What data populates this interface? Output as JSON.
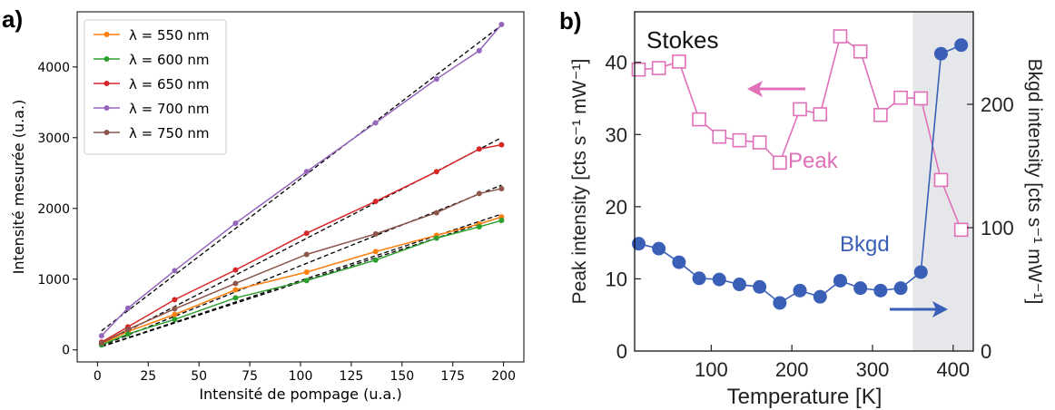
{
  "panels": {
    "a": {
      "label": "a)"
    },
    "b": {
      "label": "b)"
    }
  },
  "chart_data": [
    {
      "type": "line",
      "panel": "a)",
      "xlabel": "Intensité de pompage (u.a.)",
      "ylabel": "Intensité mesurée (u.a.)",
      "xlim": [
        -10,
        210
      ],
      "ylim": [
        -170,
        4780
      ],
      "x_ticks": [
        0,
        25,
        50,
        75,
        100,
        125,
        150,
        175,
        200
      ],
      "y_ticks": [
        0,
        1000,
        2000,
        3000,
        4000
      ],
      "legend_position": "top-left",
      "grid": false,
      "x": [
        2,
        15,
        38,
        68,
        103,
        137,
        167,
        188,
        199
      ],
      "series": [
        {
          "name": "λ = 550 nm",
          "color": "#ff7f0e",
          "values": [
            85,
            260,
            500,
            850,
            1100,
            1390,
            1620,
            1780,
            1880
          ]
        },
        {
          "name": "λ = 600 nm",
          "color": "#2ca02c",
          "values": [
            70,
            225,
            430,
            735,
            980,
            1270,
            1580,
            1740,
            1830
          ]
        },
        {
          "name": "λ = 650 nm",
          "color": "#d62728",
          "values": [
            110,
            325,
            710,
            1130,
            1650,
            2100,
            2520,
            2840,
            2900
          ]
        },
        {
          "name": "λ = 700 nm",
          "color": "#9467bd",
          "values": [
            200,
            590,
            1120,
            1790,
            2520,
            3210,
            3830,
            4230,
            4600
          ]
        },
        {
          "name": "λ = 750 nm",
          "color": "#8c564b",
          "values": [
            95,
            290,
            580,
            940,
            1350,
            1640,
            1940,
            2210,
            2280
          ]
        }
      ],
      "fits": [
        {
          "color": "#000000",
          "x": [
            2,
            199
          ],
          "y": [
            50,
            1920
          ]
        },
        {
          "color": "#000000",
          "x": [
            2,
            199
          ],
          "y": [
            45,
            1880
          ]
        },
        {
          "color": "#000000",
          "x": [
            2,
            199
          ],
          "y": [
            80,
            3000
          ]
        },
        {
          "color": "#000000",
          "x": [
            2,
            199
          ],
          "y": [
            270,
            4590
          ]
        },
        {
          "color": "#000000",
          "x": [
            2,
            199
          ],
          "y": [
            60,
            2330
          ]
        }
      ]
    },
    {
      "type": "line",
      "panel": "b)",
      "title": "Stokes",
      "xlabel": "Temperature [K]",
      "ylabel_left": "Peak intensity [cts s⁻¹ mW⁻¹]",
      "ylabel_right": "Bkgd intensity [cts s⁻¹ mW⁻¹]",
      "xlim": [
        5,
        425
      ],
      "ylim_left": [
        0,
        47
      ],
      "ylim_right": [
        0,
        275
      ],
      "x_ticks": [
        100,
        200,
        300,
        400
      ],
      "y_ticks_left": [
        0,
        10,
        20,
        30,
        40
      ],
      "y_ticks_right": [
        0,
        100,
        200
      ],
      "shaded_region": {
        "x": [
          350,
          425
        ],
        "color": "#e6e7ea"
      },
      "series": [
        {
          "name": "Peak",
          "axis": "left",
          "color": "#e070b8",
          "marker": "open-square",
          "x": [
            10,
            35,
            60,
            85,
            110,
            135,
            160,
            185,
            210,
            235,
            260,
            285,
            310,
            335,
            360,
            385,
            410
          ],
          "values": [
            39,
            39.2,
            40.1,
            32.1,
            29.7,
            29.2,
            28.9,
            26.1,
            33.5,
            32.8,
            43.6,
            41.5,
            32.7,
            35.1,
            35,
            23.7,
            16.8
          ]
        },
        {
          "name": "Bkgd",
          "axis": "right",
          "color": "#3a5fb7",
          "marker": "filled-circle",
          "x": [
            10,
            35,
            60,
            85,
            110,
            135,
            160,
            185,
            210,
            235,
            260,
            285,
            310,
            335,
            360,
            385,
            410
          ],
          "values": [
            87,
            83,
            72,
            59,
            58,
            54,
            52,
            39,
            49,
            44,
            57,
            51,
            49,
            51,
            64,
            241,
            248
          ]
        }
      ],
      "arrows": [
        {
          "color": "#e070b8",
          "direction": "left"
        },
        {
          "color": "#3a5fb7",
          "direction": "right"
        }
      ]
    }
  ]
}
